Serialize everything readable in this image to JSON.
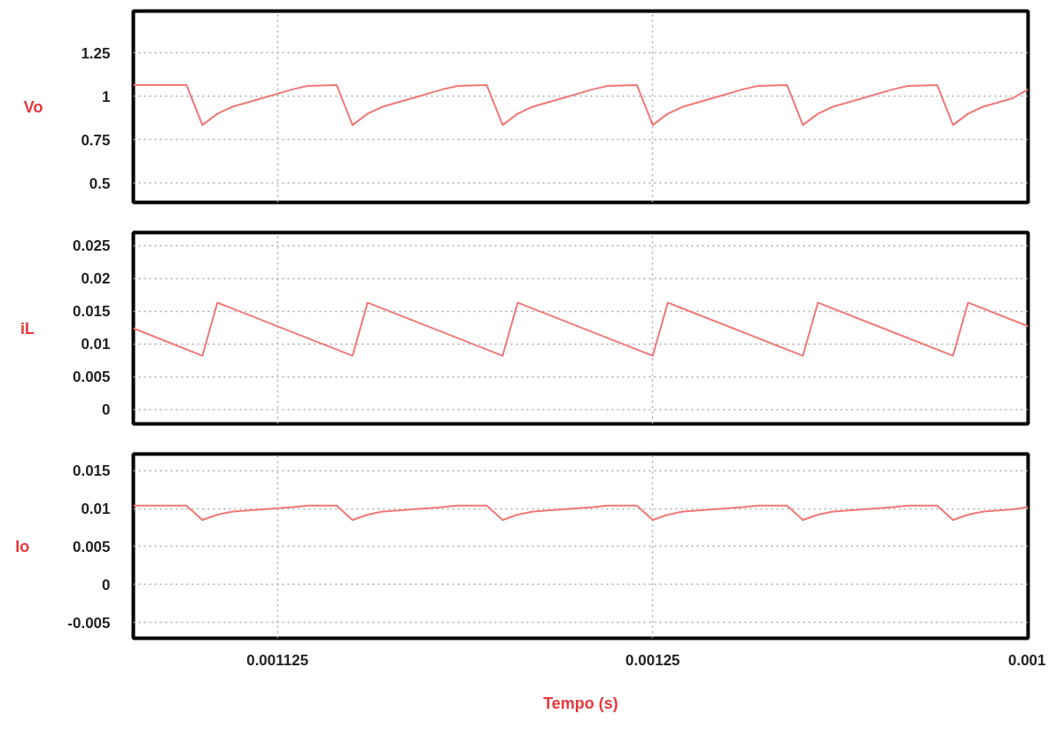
{
  "chart_data": [
    {
      "type": "line",
      "ylabel": "Vo",
      "tick_labels": "y",
      "grid": true,
      "x": [
        0.001077,
        0.0010947,
        0.0011,
        0.001105,
        0.00111,
        0.00112,
        0.00113,
        0.001135,
        0.0011447,
        0.00115,
        0.001155,
        0.00116,
        0.00117,
        0.00118,
        0.001185,
        0.0011947,
        0.0012,
        0.001205,
        0.00121,
        0.00122,
        0.00123,
        0.001235,
        0.0012447,
        0.00125,
        0.001255,
        0.00126,
        0.00127,
        0.00128,
        0.001285,
        0.0012947,
        0.0013,
        0.001305,
        0.00131,
        0.00132,
        0.00133,
        0.001335,
        0.0013447,
        0.00135,
        0.001355,
        0.00136,
        0.00137,
        0.001375
      ],
      "series": [
        {
          "color": "#f07878",
          "values": [
            1.065,
            1.065,
            0.835,
            0.9,
            0.94,
            0.99,
            1.04,
            1.06,
            1.065,
            0.835,
            0.9,
            0.94,
            0.99,
            1.04,
            1.06,
            1.065,
            0.835,
            0.9,
            0.94,
            0.99,
            1.04,
            1.06,
            1.065,
            0.835,
            0.9,
            0.94,
            0.99,
            1.04,
            1.06,
            1.065,
            0.835,
            0.9,
            0.94,
            0.99,
            1.04,
            1.06,
            1.065,
            0.835,
            0.9,
            0.94,
            0.99,
            1.04
          ]
        }
      ],
      "xlim": [
        0.001077,
        0.001375
      ],
      "ylim": [
        0.39,
        1.49
      ],
      "yticks": [
        0.5,
        0.75,
        1,
        1.25
      ]
    },
    {
      "type": "line",
      "ylabel": "iL",
      "tick_labels": "y",
      "grid": true,
      "x": [
        0.001077,
        0.0011,
        0.001105,
        0.00115,
        0.001155,
        0.0012,
        0.001205,
        0.00125,
        0.001255,
        0.0013,
        0.001305,
        0.00135,
        0.001355,
        0.001375
      ],
      "series": [
        {
          "color": "#f07878",
          "values": [
            0.0124,
            0.0082,
            0.0163,
            0.0082,
            0.0163,
            0.0082,
            0.0163,
            0.0082,
            0.0163,
            0.0082,
            0.0163,
            0.0082,
            0.0163,
            0.0127
          ]
        }
      ],
      "xlim": [
        0.001077,
        0.001375
      ],
      "ylim": [
        -0.0022,
        0.027
      ],
      "yticks": [
        0,
        0.005,
        0.01,
        0.015,
        0.02,
        0.025
      ]
    },
    {
      "type": "line",
      "ylabel": "Io",
      "xlabel": "Tempo (s)",
      "grid": true,
      "x": [
        0.001077,
        0.0010947,
        0.0011,
        0.001105,
        0.00111,
        0.00112,
        0.00113,
        0.001135,
        0.0011447,
        0.00115,
        0.001155,
        0.00116,
        0.00117,
        0.00118,
        0.001185,
        0.0011947,
        0.0012,
        0.001205,
        0.00121,
        0.00122,
        0.00123,
        0.001235,
        0.0012447,
        0.00125,
        0.001255,
        0.00126,
        0.00127,
        0.00128,
        0.001285,
        0.0012947,
        0.0013,
        0.001305,
        0.00131,
        0.00132,
        0.00133,
        0.001335,
        0.0013447,
        0.00135,
        0.001355,
        0.00136,
        0.00137,
        0.001375
      ],
      "series": [
        {
          "color": "#f07878",
          "values": [
            0.0104,
            0.0104,
            0.0085,
            0.0092,
            0.0096,
            0.0099,
            0.0102,
            0.0104,
            0.0104,
            0.0085,
            0.0092,
            0.0096,
            0.0099,
            0.0102,
            0.0104,
            0.0104,
            0.0085,
            0.0092,
            0.0096,
            0.0099,
            0.0102,
            0.0104,
            0.0104,
            0.0085,
            0.0092,
            0.0096,
            0.0099,
            0.0102,
            0.0104,
            0.0104,
            0.0085,
            0.0092,
            0.0096,
            0.0099,
            0.0102,
            0.0104,
            0.0104,
            0.0085,
            0.0092,
            0.0096,
            0.0099,
            0.0102
          ]
        }
      ],
      "xlim": [
        0.001077,
        0.001375
      ],
      "xticks": [
        0.001125,
        0.00125,
        {
          "value": 0.001375,
          "label": "0.001"
        }
      ],
      "ylim": [
        -0.0071,
        0.0172
      ],
      "yticks": [
        -0.005,
        0,
        0.005,
        0.01,
        0.015
      ]
    }
  ]
}
